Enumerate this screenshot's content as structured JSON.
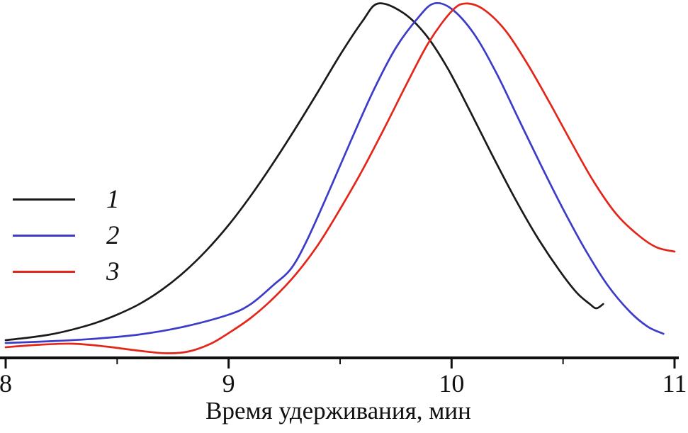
{
  "chart_data": {
    "type": "line",
    "title": "",
    "xlabel": "Время удерживания, мин",
    "ylabel": "",
    "xlim": [
      8,
      11
    ],
    "ylim": [
      0,
      1
    ],
    "x_ticks": [
      8,
      9,
      10,
      11
    ],
    "x_minor_ticks": [
      8.5,
      9.5,
      10.5
    ],
    "grid": false,
    "legend_position": "center-left",
    "axis_color": "#111111",
    "series": [
      {
        "name": "1",
        "color": "#1a1a1a",
        "points": [
          [
            8.0,
            0.05
          ],
          [
            8.1,
            0.057
          ],
          [
            8.2,
            0.066
          ],
          [
            8.3,
            0.08
          ],
          [
            8.4,
            0.098
          ],
          [
            8.5,
            0.122
          ],
          [
            8.6,
            0.152
          ],
          [
            8.7,
            0.192
          ],
          [
            8.8,
            0.242
          ],
          [
            8.9,
            0.303
          ],
          [
            9.0,
            0.375
          ],
          [
            9.1,
            0.458
          ],
          [
            9.2,
            0.55
          ],
          [
            9.3,
            0.648
          ],
          [
            9.4,
            0.75
          ],
          [
            9.5,
            0.855
          ],
          [
            9.6,
            0.95
          ],
          [
            9.67,
            1.0
          ],
          [
            9.78,
            0.975
          ],
          [
            9.88,
            0.915
          ],
          [
            9.98,
            0.82
          ],
          [
            10.08,
            0.7
          ],
          [
            10.18,
            0.575
          ],
          [
            10.28,
            0.455
          ],
          [
            10.38,
            0.345
          ],
          [
            10.48,
            0.25
          ],
          [
            10.56,
            0.185
          ],
          [
            10.62,
            0.152
          ],
          [
            10.65,
            0.14
          ],
          [
            10.68,
            0.152
          ]
        ]
      },
      {
        "name": "2",
        "color": "#3c3cc8",
        "points": [
          [
            8.0,
            0.042
          ],
          [
            8.2,
            0.047
          ],
          [
            8.4,
            0.054
          ],
          [
            8.6,
            0.066
          ],
          [
            8.8,
            0.088
          ],
          [
            9.0,
            0.122
          ],
          [
            9.1,
            0.152
          ],
          [
            9.2,
            0.205
          ],
          [
            9.28,
            0.252
          ],
          [
            9.35,
            0.33
          ],
          [
            9.45,
            0.47
          ],
          [
            9.55,
            0.615
          ],
          [
            9.65,
            0.755
          ],
          [
            9.75,
            0.875
          ],
          [
            9.85,
            0.96
          ],
          [
            9.92,
            1.0
          ],
          [
            10.0,
            0.985
          ],
          [
            10.1,
            0.915
          ],
          [
            10.2,
            0.805
          ],
          [
            10.3,
            0.675
          ],
          [
            10.4,
            0.545
          ],
          [
            10.5,
            0.42
          ],
          [
            10.6,
            0.305
          ],
          [
            10.7,
            0.205
          ],
          [
            10.8,
            0.13
          ],
          [
            10.88,
            0.088
          ],
          [
            10.95,
            0.068
          ]
        ]
      },
      {
        "name": "3",
        "color": "#e32619",
        "points": [
          [
            8.0,
            0.03
          ],
          [
            8.15,
            0.037
          ],
          [
            8.3,
            0.04
          ],
          [
            8.45,
            0.032
          ],
          [
            8.6,
            0.02
          ],
          [
            8.72,
            0.013
          ],
          [
            8.82,
            0.018
          ],
          [
            8.92,
            0.04
          ],
          [
            9.0,
            0.07
          ],
          [
            9.1,
            0.113
          ],
          [
            9.2,
            0.168
          ],
          [
            9.3,
            0.235
          ],
          [
            9.4,
            0.318
          ],
          [
            9.5,
            0.42
          ],
          [
            9.6,
            0.53
          ],
          [
            9.7,
            0.65
          ],
          [
            9.8,
            0.775
          ],
          [
            9.9,
            0.893
          ],
          [
            10.0,
            0.978
          ],
          [
            10.06,
            1.0
          ],
          [
            10.14,
            0.985
          ],
          [
            10.24,
            0.925
          ],
          [
            10.34,
            0.83
          ],
          [
            10.44,
            0.72
          ],
          [
            10.54,
            0.605
          ],
          [
            10.64,
            0.495
          ],
          [
            10.74,
            0.405
          ],
          [
            10.84,
            0.345
          ],
          [
            10.92,
            0.312
          ],
          [
            11.0,
            0.3
          ]
        ]
      }
    ]
  }
}
